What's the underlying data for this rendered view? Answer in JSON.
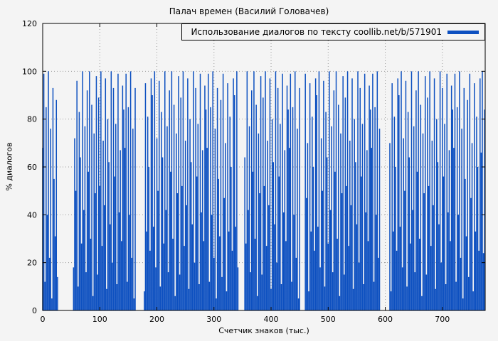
{
  "chart_data": {
    "type": "bar",
    "title": "Палач времен (Василий Головачев)",
    "legend": "Использование диалогов по тексту coollib.net/b/571901",
    "xlabel": "Счетчик знаков (тыс.)",
    "ylabel": "% диалогов",
    "xlim": [
      0,
      775
    ],
    "ylim": [
      0,
      120
    ],
    "xticks": [
      0,
      100,
      200,
      300,
      400,
      500,
      600,
      700
    ],
    "yticks": [
      0,
      20,
      40,
      60,
      80,
      100,
      120
    ],
    "grid": "dotted",
    "legend_position": "top-right",
    "series_color": "#0d50c0",
    "x_step": 2,
    "values": [
      68,
      99,
      12,
      85,
      40,
      100,
      22,
      76,
      5,
      93,
      55,
      31,
      88,
      14,
      0,
      0,
      0,
      0,
      0,
      0,
      0,
      0,
      0,
      0,
      0,
      0,
      0,
      18,
      72,
      50,
      96,
      10,
      83,
      64,
      28,
      100,
      42,
      77,
      16,
      92,
      58,
      100,
      30,
      86,
      6,
      74,
      49,
      98,
      15,
      89,
      52,
      100,
      27,
      71,
      44,
      97,
      9,
      80,
      62,
      36,
      100,
      20,
      93,
      56,
      78,
      11,
      99,
      41,
      67,
      29,
      94,
      84,
      68,
      99,
      12,
      85,
      40,
      100,
      22,
      76,
      5,
      93,
      0,
      0,
      0,
      0,
      0,
      0,
      0,
      8,
      95,
      33,
      81,
      60,
      25,
      97,
      90,
      35,
      100,
      18,
      72,
      50,
      96,
      10,
      83,
      64,
      28,
      100,
      42,
      77,
      16,
      92,
      58,
      100,
      30,
      86,
      6,
      74,
      49,
      98,
      15,
      89,
      52,
      100,
      27,
      71,
      44,
      97,
      9,
      80,
      62,
      36,
      100,
      20,
      93,
      56,
      78,
      11,
      99,
      41,
      67,
      29,
      94,
      84,
      68,
      99,
      12,
      85,
      40,
      100,
      22,
      76,
      5,
      93,
      55,
      31,
      88,
      14,
      99,
      47,
      70,
      8,
      95,
      33,
      81,
      60,
      25,
      97,
      90,
      35,
      100,
      18,
      0,
      0,
      0,
      0,
      0,
      64,
      28,
      100,
      42,
      77,
      16,
      92,
      58,
      100,
      30,
      86,
      6,
      74,
      49,
      98,
      15,
      89,
      52,
      100,
      27,
      71,
      44,
      97,
      9,
      80,
      62,
      36,
      100,
      20,
      93,
      56,
      78,
      11,
      99,
      41,
      67,
      29,
      94,
      84,
      68,
      99,
      12,
      85,
      40,
      100,
      22,
      76,
      5,
      93,
      0,
      0,
      0,
      0,
      99,
      47,
      70,
      8,
      95,
      33,
      81,
      60,
      25,
      97,
      90,
      35,
      100,
      18,
      72,
      50,
      96,
      10,
      83,
      64,
      28,
      100,
      42,
      77,
      16,
      92,
      58,
      100,
      30,
      86,
      6,
      74,
      49,
      98,
      15,
      89,
      52,
      100,
      27,
      71,
      44,
      97,
      9,
      80,
      62,
      36,
      100,
      20,
      93,
      56,
      78,
      11,
      99,
      41,
      67,
      29,
      94,
      84,
      68,
      99,
      12,
      85,
      40,
      100,
      22,
      76,
      0,
      0,
      0,
      0,
      0,
      0,
      0,
      0,
      70,
      8,
      95,
      33,
      81,
      60,
      25,
      97,
      90,
      35,
      100,
      18,
      72,
      50,
      96,
      10,
      83,
      64,
      28,
      100,
      42,
      77,
      16,
      92,
      58,
      100,
      30,
      86,
      6,
      74,
      49,
      98,
      15,
      89,
      52,
      100,
      27,
      71,
      44,
      97,
      9,
      80,
      62,
      36,
      100,
      20,
      93,
      56,
      78,
      11,
      99,
      41,
      67,
      29,
      94,
      84,
      68,
      99,
      12,
      85,
      40,
      100,
      22,
      76,
      5,
      93,
      55,
      31,
      88,
      14,
      99,
      47,
      70,
      8,
      95,
      33,
      81,
      60,
      25,
      97,
      66,
      100,
      24,
      84
    ]
  }
}
